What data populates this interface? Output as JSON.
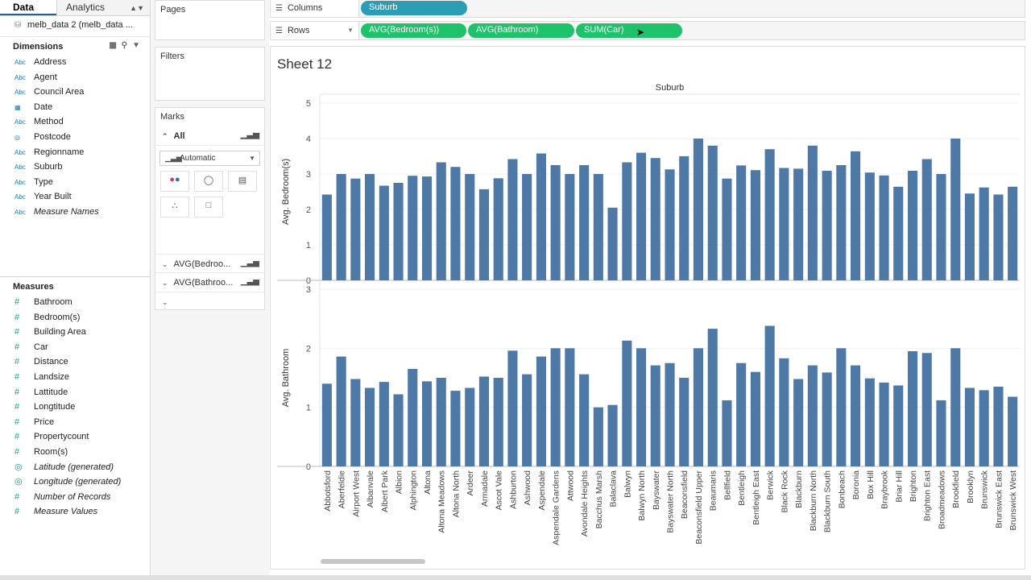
{
  "data_pane": {
    "tab_data": "Data",
    "tab_analytics": "Analytics",
    "datasource": "melb_data 2 (melb_data ...",
    "dimensions_title": "Dimensions",
    "dimensions": [
      {
        "type": "Abc",
        "label": "Address"
      },
      {
        "type": "Abc",
        "label": "Agent"
      },
      {
        "type": "Abc",
        "label": "Council Area"
      },
      {
        "type": "date",
        "label": "Date"
      },
      {
        "type": "Abc",
        "label": "Method"
      },
      {
        "type": "geo",
        "label": "Postcode"
      },
      {
        "type": "Abc",
        "label": "Regionname"
      },
      {
        "type": "Abc",
        "label": "Suburb"
      },
      {
        "type": "Abc",
        "label": "Type"
      },
      {
        "type": "Abc",
        "label": "Year Built"
      },
      {
        "type": "Abc",
        "label": "Measure Names"
      }
    ],
    "measures_title": "Measures",
    "measures": [
      {
        "type": "num",
        "label": "Bathroom"
      },
      {
        "type": "num",
        "label": "Bedroom(s)"
      },
      {
        "type": "num",
        "label": "Building Area"
      },
      {
        "type": "num",
        "label": "Car"
      },
      {
        "type": "num",
        "label": "Distance"
      },
      {
        "type": "num",
        "label": "Landsize"
      },
      {
        "type": "num",
        "label": "Lattitude"
      },
      {
        "type": "num",
        "label": "Longtitude"
      },
      {
        "type": "num",
        "label": "Price"
      },
      {
        "type": "num",
        "label": "Propertycount"
      },
      {
        "type": "num",
        "label": "Room(s)"
      },
      {
        "type": "geo",
        "label": "Latitude (generated)"
      },
      {
        "type": "geo",
        "label": "Longitude (generated)"
      },
      {
        "type": "num",
        "label": "Number of Records"
      },
      {
        "type": "num",
        "label": "Measure Values"
      }
    ]
  },
  "cards": {
    "pages": "Pages",
    "filters": "Filters",
    "marks": "Marks",
    "marks_all": "All",
    "mark_type": "Automatic",
    "btn_color": "Color",
    "btn_size": "Size",
    "btn_label": "Label",
    "btn_detail": "Detail",
    "btn_tooltip": "Tooltip",
    "marks_card_1": "AVG(Bedroo...",
    "marks_card_2": "AVG(Bathroo..."
  },
  "shelves": {
    "columns_label": "Columns",
    "columns_pill": "Suburb",
    "rows_label": "Rows",
    "rows_pills": [
      "AVG(Bedroom(s))",
      "AVG(Bathroom)",
      "SUM(Car)"
    ]
  },
  "sheet": {
    "title": "Sheet 12"
  },
  "colors": {
    "bar": "#4e79a7",
    "dimension_pill": "#2d9db6",
    "measure_pill": "#1ec26a"
  },
  "chart_data": {
    "type": "bar",
    "header": "Suburb",
    "categories": [
      "Abbotsford",
      "Aberfeldie",
      "Airport West",
      "Albanvale",
      "Albert Park",
      "Albion",
      "Alphington",
      "Altona",
      "Altona Meadows",
      "Altona North",
      "Ardeer",
      "Armadale",
      "Ascot Vale",
      "Ashburton",
      "Ashwood",
      "Aspendale",
      "Aspendale Gardens",
      "Attwood",
      "Avondale Heights",
      "Bacchus Marsh",
      "Balaclava",
      "Balwyn",
      "Balwyn North",
      "Bayswater",
      "Bayswater North",
      "Beaconsfield",
      "Beaconsfield Upper",
      "Beaumaris",
      "Bellfield",
      "Bentleigh",
      "Bentleigh East",
      "Berwick",
      "Black Rock",
      "Blackburn",
      "Blackburn North",
      "Blackburn South",
      "Bonbeach",
      "Boronia",
      "Box Hill",
      "Braybrook",
      "Briar Hill",
      "Brighton",
      "Brighton East",
      "Broadmeadows",
      "Brookfield",
      "Brooklyn",
      "Brunswick",
      "Brunswick East",
      "Brunswick West"
    ],
    "panes": [
      {
        "ylabel": "Avg. Bedroom(s)",
        "ylim": [
          0,
          5
        ],
        "ticks": [
          0,
          1,
          2,
          3,
          4,
          5
        ],
        "values": [
          2.42,
          3.0,
          2.87,
          3.0,
          2.67,
          2.75,
          2.95,
          2.93,
          3.33,
          3.2,
          3.0,
          2.57,
          2.88,
          3.42,
          3.0,
          3.58,
          3.25,
          3.0,
          3.25,
          3.0,
          2.05,
          3.33,
          3.6,
          3.45,
          3.13,
          3.5,
          4.0,
          3.8,
          2.87,
          3.24,
          3.11,
          3.7,
          3.17,
          3.15,
          3.8,
          3.09,
          3.25,
          3.64,
          3.04,
          2.96,
          2.64,
          3.09,
          3.42,
          3.0,
          4.0,
          2.45,
          2.62,
          2.42,
          2.64
        ]
      },
      {
        "ylabel": "Avg. Bathroom",
        "ylim": [
          0,
          3
        ],
        "ticks": [
          0,
          1,
          2,
          3
        ],
        "values": [
          1.4,
          1.86,
          1.48,
          1.33,
          1.43,
          1.22,
          1.65,
          1.44,
          1.5,
          1.28,
          1.33,
          1.52,
          1.5,
          1.96,
          1.56,
          1.86,
          2.0,
          2.0,
          1.56,
          1.0,
          1.04,
          2.13,
          2.0,
          1.71,
          1.75,
          1.5,
          2.0,
          2.33,
          1.12,
          1.75,
          1.6,
          2.38,
          1.83,
          1.48,
          1.71,
          1.59,
          2.0,
          1.71,
          1.49,
          1.42,
          1.37,
          1.95,
          1.92,
          1.12,
          2.0,
          1.33,
          1.29,
          1.35,
          1.18
        ]
      }
    ]
  }
}
